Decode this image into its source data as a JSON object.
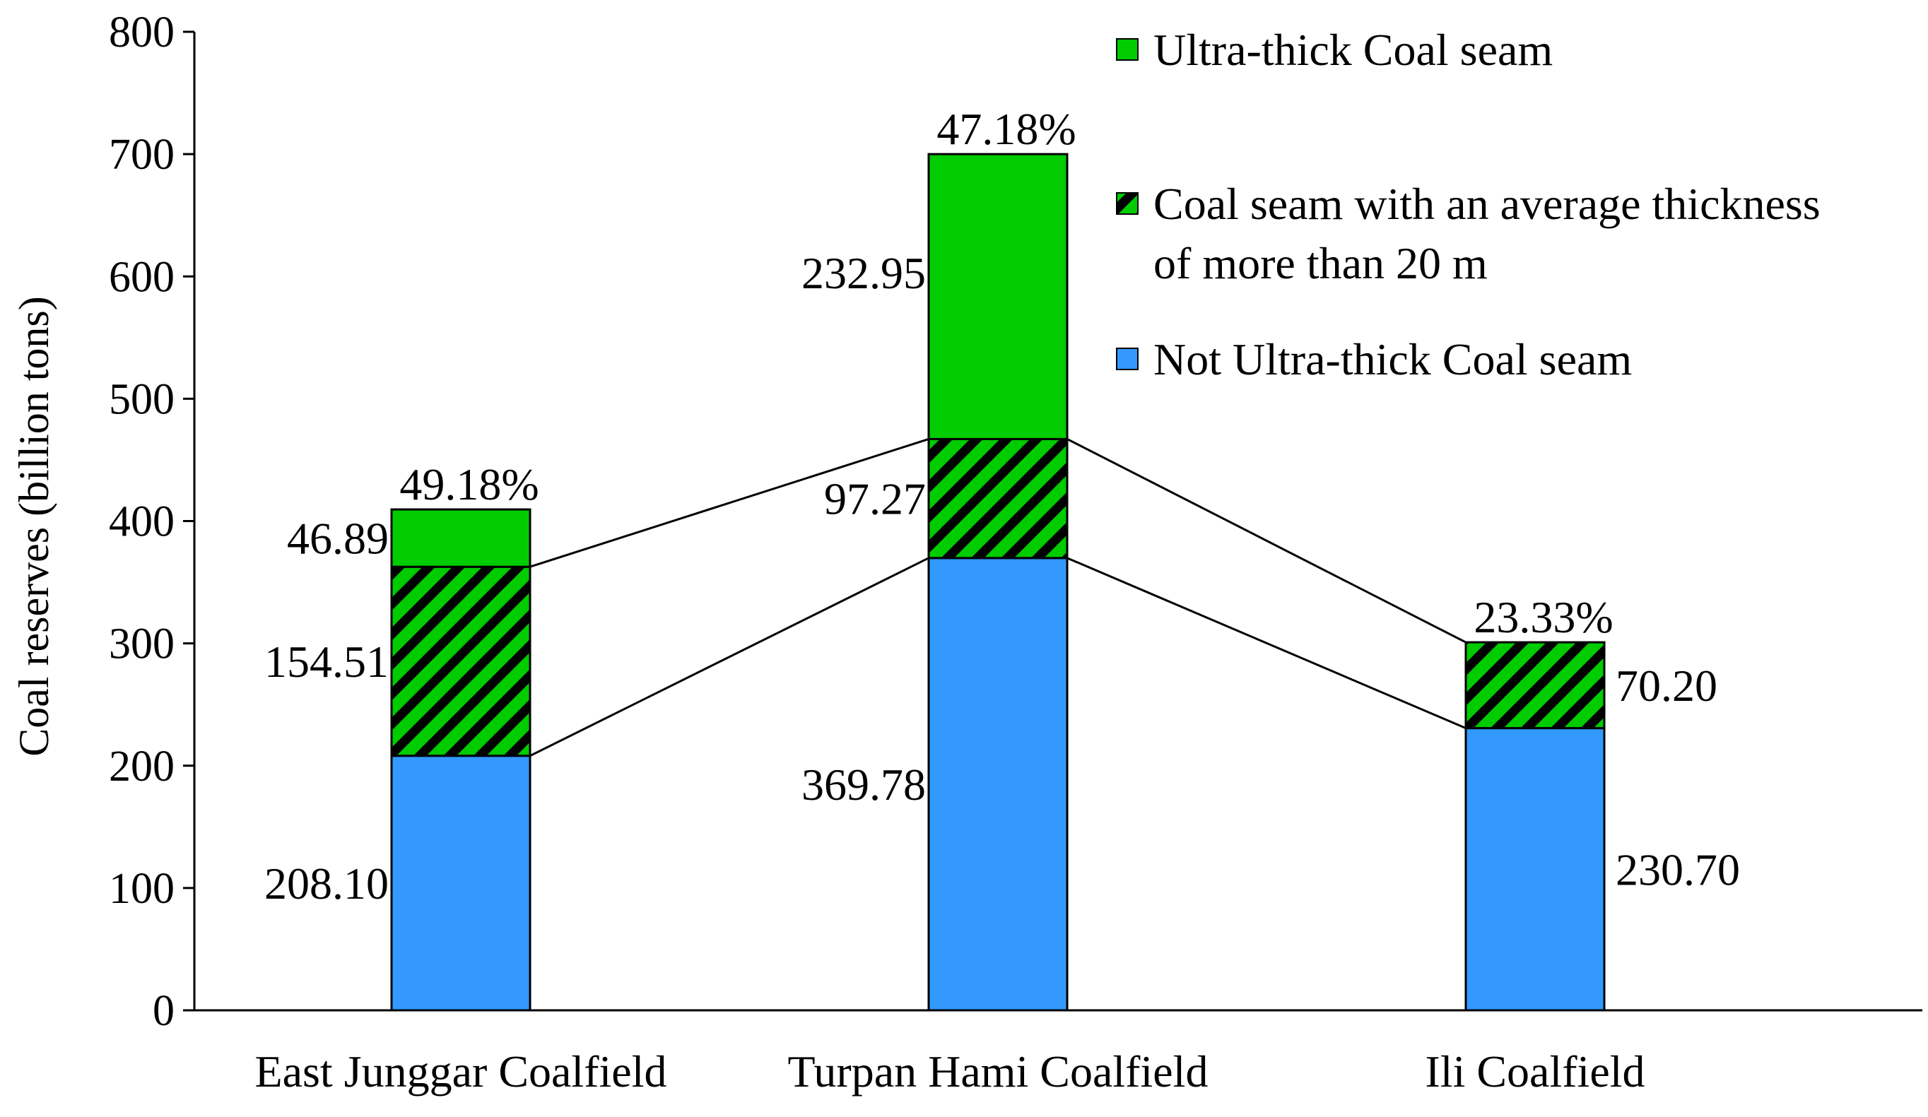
{
  "chart_data": {
    "type": "bar",
    "stacked": true,
    "title": "",
    "xlabel": "",
    "ylabel": "Coal reserves (billion tons)",
    "ylim": [
      0,
      800
    ],
    "yticks": [
      "0",
      "100",
      "200",
      "300",
      "400",
      "500",
      "600",
      "700",
      "800"
    ],
    "categories": [
      "East Junggar Coalfield",
      "Turpan Hami Coalfield",
      "Ili Coalfield"
    ],
    "series": [
      {
        "name": "Not Ultra-thick Coal seam",
        "color": "#3399ff",
        "pattern": "solid",
        "values": [
          208.1,
          369.78,
          230.7
        ],
        "labels": [
          "208.10",
          "369.78",
          "230.70"
        ]
      },
      {
        "name": "Coal seam with an average thickness of more than 20 m",
        "legend_lines": [
          "Coal seam with an average thickness",
          "of more than 20 m"
        ],
        "color": "#00cc00",
        "pattern": "hatched",
        "values": [
          154.51,
          97.27,
          70.2
        ],
        "labels": [
          "154.51",
          "97.27",
          "70.20"
        ]
      },
      {
        "name": "Ultra-thick Coal seam",
        "color": "#00cc00",
        "pattern": "solid",
        "values": [
          46.89,
          232.95,
          0
        ],
        "labels": [
          "46.89",
          "232.95",
          ""
        ]
      }
    ],
    "percent_labels": [
      "49.18%",
      "47.18%",
      "23.33%"
    ],
    "legend_order": [
      2,
      1,
      0
    ],
    "legend_position": "top-right",
    "series_lines": true,
    "grid": false
  }
}
